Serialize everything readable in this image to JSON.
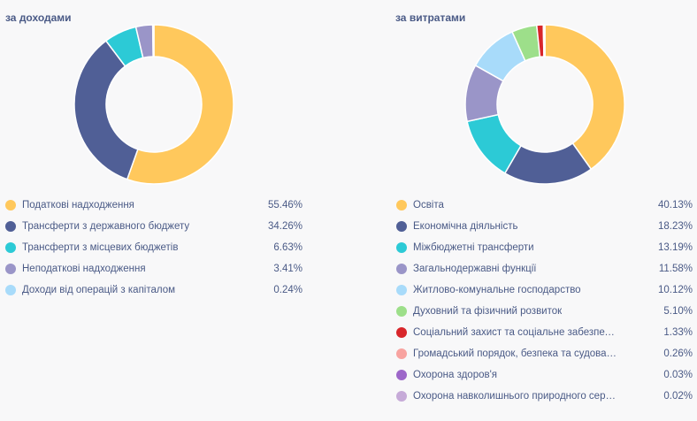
{
  "chart_data": [
    {
      "type": "pie",
      "variant": "donut",
      "title": "за доходами",
      "series": [
        {
          "name": "Податкові надходження",
          "value": 55.46,
          "label": "55.46%",
          "color": "#ffc85c"
        },
        {
          "name": "Трансферти з державного бюджету",
          "value": 34.26,
          "label": "34.26%",
          "color": "#505f96"
        },
        {
          "name": "Трансферти з місцевих бюджетів",
          "value": 6.63,
          "label": "6.63%",
          "color": "#2ccad6"
        },
        {
          "name": "Неподаткові надходження",
          "value": 3.41,
          "label": "3.41%",
          "color": "#9a95c8"
        },
        {
          "name": "Доходи від операцій з капіталом",
          "value": 0.24,
          "label": "0.24%",
          "color": "#a8dbfa"
        }
      ]
    },
    {
      "type": "pie",
      "variant": "donut",
      "title": "за витратами",
      "series": [
        {
          "name": "Освіта",
          "value": 40.13,
          "label": "40.13%",
          "color": "#ffc85c"
        },
        {
          "name": "Економічна діяльність",
          "value": 18.23,
          "label": "18.23%",
          "color": "#505f96"
        },
        {
          "name": "Міжбюджетні трансферти",
          "value": 13.19,
          "label": "13.19%",
          "color": "#2ccad6"
        },
        {
          "name": "Загальнодержавні функції",
          "value": 11.58,
          "label": "11.58%",
          "color": "#9a95c8"
        },
        {
          "name": "Житлово-комунальне господарство",
          "value": 10.12,
          "label": "10.12%",
          "color": "#a8dbfa"
        },
        {
          "name": "Духовний та фізичний розвиток",
          "value": 5.1,
          "label": "5.10%",
          "color": "#9ddf8a"
        },
        {
          "name": "Соціальний захист та соціальне забезпечення",
          "value": 1.33,
          "label": "1.33%",
          "color": "#d8262b"
        },
        {
          "name": "Громадський порядок, безпека та судова влада",
          "value": 0.26,
          "label": "0.26%",
          "color": "#f8a3a0"
        },
        {
          "name": "Охорона здоров'я",
          "value": 0.03,
          "label": "0.03%",
          "color": "#9d67c9"
        },
        {
          "name": "Охорона навколишнього природного середовища",
          "value": 0.02,
          "label": "0.02%",
          "color": "#c6aad8"
        }
      ]
    }
  ]
}
